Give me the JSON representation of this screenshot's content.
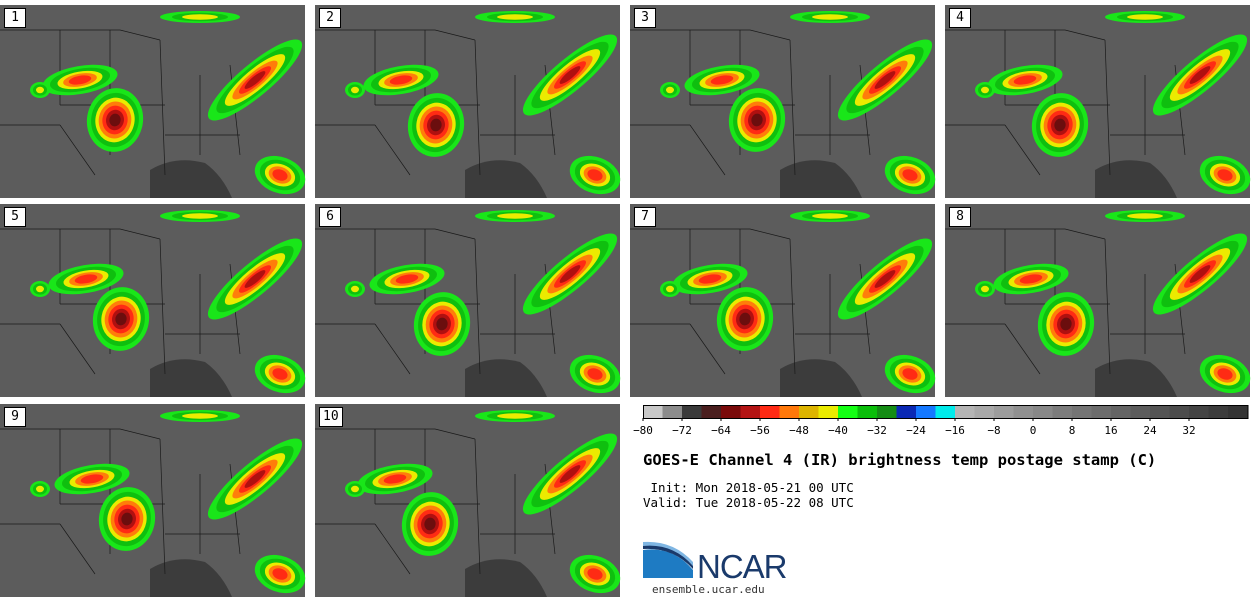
{
  "panels": [
    "1",
    "2",
    "3",
    "4",
    "5",
    "6",
    "7",
    "8",
    "9",
    "10"
  ],
  "colorbar": {
    "colors": [
      "#c8c8c8",
      "#8c8c8c",
      "#3a3a3a",
      "#4a1e1e",
      "#7a0a0a",
      "#b41414",
      "#ff2a14",
      "#ff780a",
      "#ddb400",
      "#ebeb00",
      "#14ff14",
      "#0abe0a",
      "#148c14",
      "#0a28b4",
      "#1478ff",
      "#00ebeb",
      "#b4b4b4",
      "#a8a8a8",
      "#9c9c9c",
      "#909090",
      "#888888",
      "#7c7c7c",
      "#747474",
      "#6c6c6c",
      "#646464",
      "#5c5c5c",
      "#545454",
      "#4c4c4c",
      "#444444",
      "#3c3c3c",
      "#343434"
    ],
    "ticks": [
      "−80",
      "−72",
      "−64",
      "−56",
      "−48",
      "−40",
      "−32",
      "−24",
      "−16",
      "−8",
      "0",
      "8",
      "16",
      "24",
      "32"
    ]
  },
  "title": "GOES-E Channel 4 (IR) brightness temp postage stamp (C)",
  "init_line": " Init: Mon 2018-05-21 00 UTC",
  "valid_line": "Valid: Tue 2018-05-22 08 UTC",
  "logo_text": "NCAR",
  "website": "ensemble.ucar.edu"
}
